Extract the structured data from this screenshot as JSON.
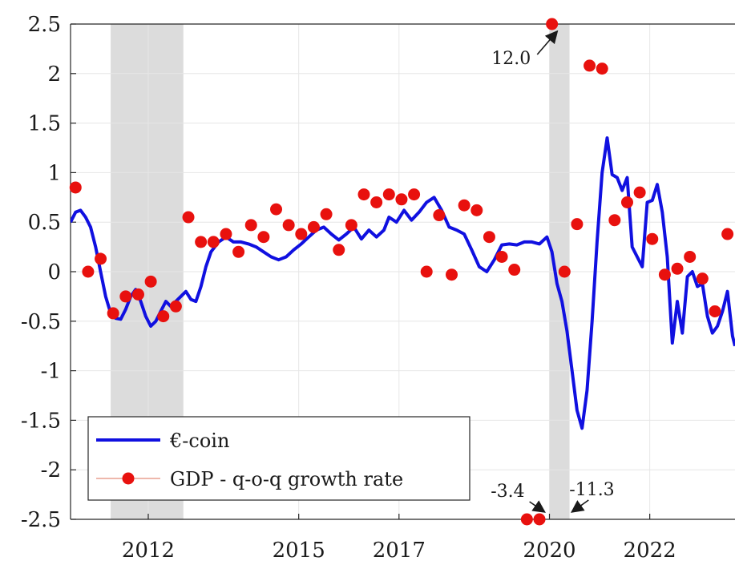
{
  "chart_data": {
    "type": "line",
    "title": "",
    "xlabel": "",
    "ylabel": "",
    "xlim": [
      2010.45,
      2023.7
    ],
    "ylim": [
      -2.5,
      2.5
    ],
    "grid": true,
    "x_ticks": [
      2012,
      2015,
      2017,
      2020,
      2022
    ],
    "y_ticks": [
      2.5,
      2,
      1.5,
      1,
      0.5,
      0,
      -0.5,
      -1,
      -1.5,
      -2,
      -2.5
    ],
    "y_tick_labels": [
      "2.5",
      "2",
      "1.5",
      "1",
      "0.5",
      "0",
      "-0.5",
      "-1",
      "-1.5",
      "-2",
      "-2.5"
    ],
    "x_tick_labels": [
      "2012",
      "2015",
      "2017",
      "2020",
      "2022"
    ],
    "recession_bands": [
      [
        2011.25,
        2012.7
      ],
      [
        2020.0,
        2020.4
      ]
    ],
    "legend": {
      "position": "bottom-left"
    },
    "colors": {
      "line": "#1010e0",
      "dots": "#e8110e",
      "band": "#dcdcdc",
      "grid": "#e6e6e6"
    },
    "series": [
      {
        "name": "€-coin",
        "kind": "line",
        "x": [
          2010.45,
          2010.55,
          2010.65,
          2010.75,
          2010.85,
          2010.95,
          2011.05,
          2011.15,
          2011.25,
          2011.35,
          2011.45,
          2011.55,
          2011.65,
          2011.75,
          2011.85,
          2011.95,
          2012.05,
          2012.15,
          2012.25,
          2012.35,
          2012.45,
          2012.55,
          2012.65,
          2012.75,
          2012.85,
          2012.95,
          2013.05,
          2013.15,
          2013.25,
          2013.4,
          2013.55,
          2013.7,
          2013.85,
          2014.0,
          2014.15,
          2014.3,
          2014.45,
          2014.6,
          2014.75,
          2014.9,
          2015.05,
          2015.2,
          2015.35,
          2015.5,
          2015.65,
          2015.8,
          2015.95,
          2016.1,
          2016.25,
          2016.4,
          2016.55,
          2016.7,
          2016.8,
          2016.95,
          2017.1,
          2017.25,
          2017.4,
          2017.55,
          2017.7,
          2017.85,
          2018.0,
          2018.15,
          2018.3,
          2018.45,
          2018.6,
          2018.75,
          2018.9,
          2019.05,
          2019.2,
          2019.35,
          2019.5,
          2019.65,
          2019.8,
          2019.95,
          2020.05,
          2020.15,
          2020.25,
          2020.35,
          2020.45,
          2020.55,
          2020.65,
          2020.75,
          2020.85,
          2020.95,
          2021.05,
          2021.15,
          2021.25,
          2021.35,
          2021.45,
          2021.55,
          2021.65,
          2021.75,
          2021.85,
          2021.95,
          2022.05,
          2022.15,
          2022.25,
          2022.35,
          2022.45,
          2022.55,
          2022.65,
          2022.75,
          2022.85,
          2022.95,
          2023.05,
          2023.15,
          2023.25,
          2023.35,
          2023.45,
          2023.55,
          2023.65,
          2023.7
        ],
        "y": [
          0.5,
          0.6,
          0.62,
          0.55,
          0.45,
          0.25,
          0.0,
          -0.25,
          -0.42,
          -0.47,
          -0.48,
          -0.38,
          -0.25,
          -0.18,
          -0.3,
          -0.45,
          -0.55,
          -0.5,
          -0.4,
          -0.3,
          -0.35,
          -0.3,
          -0.25,
          -0.2,
          -0.28,
          -0.3,
          -0.15,
          0.05,
          0.2,
          0.3,
          0.35,
          0.3,
          0.3,
          0.28,
          0.25,
          0.2,
          0.15,
          0.12,
          0.15,
          0.22,
          0.28,
          0.35,
          0.42,
          0.45,
          0.38,
          0.32,
          0.38,
          0.45,
          0.33,
          0.42,
          0.35,
          0.42,
          0.55,
          0.5,
          0.62,
          0.52,
          0.6,
          0.7,
          0.75,
          0.62,
          0.45,
          0.42,
          0.38,
          0.22,
          0.05,
          0.0,
          0.12,
          0.27,
          0.28,
          0.27,
          0.3,
          0.3,
          0.28,
          0.35,
          0.2,
          -0.12,
          -0.3,
          -0.6,
          -1.0,
          -1.4,
          -1.58,
          -1.2,
          -0.5,
          0.3,
          1.0,
          1.35,
          0.98,
          0.95,
          0.82,
          0.95,
          0.25,
          0.15,
          0.05,
          0.7,
          0.72,
          0.88,
          0.6,
          0.15,
          -0.72,
          -0.3,
          -0.62,
          -0.05,
          0.0,
          -0.15,
          -0.12,
          -0.45,
          -0.62,
          -0.55,
          -0.4,
          -0.2,
          -0.65,
          -0.75
        ]
      },
      {
        "name": "GDP - q-o-q growth rate",
        "kind": "scatter",
        "x": [
          2010.55,
          2010.8,
          2011.05,
          2011.3,
          2011.55,
          2011.8,
          2012.05,
          2012.3,
          2012.55,
          2012.8,
          2013.05,
          2013.3,
          2013.55,
          2013.8,
          2014.05,
          2014.3,
          2014.55,
          2014.8,
          2015.05,
          2015.3,
          2015.55,
          2015.8,
          2016.05,
          2016.3,
          2016.55,
          2016.8,
          2017.05,
          2017.3,
          2017.55,
          2017.8,
          2018.05,
          2018.3,
          2018.55,
          2018.8,
          2019.05,
          2019.3,
          2019.55,
          2019.8,
          2020.05,
          2020.3,
          2020.55,
          2020.8,
          2021.05,
          2021.3,
          2021.55,
          2021.8,
          2022.05,
          2022.3,
          2022.55,
          2022.8,
          2023.05,
          2023.3,
          2023.55
        ],
        "y": [
          0.85,
          0.0,
          0.13,
          -0.42,
          -0.25,
          -0.23,
          -0.1,
          -0.45,
          -0.35,
          0.55,
          0.3,
          0.3,
          0.38,
          0.2,
          0.47,
          0.35,
          0.63,
          0.47,
          0.38,
          0.45,
          0.58,
          0.22,
          0.47,
          0.78,
          0.7,
          0.78,
          0.73,
          0.78,
          0.0,
          0.57,
          -0.03,
          0.67,
          0.62,
          0.35,
          0.15,
          0.02,
          -2.5,
          -2.5,
          2.5,
          0.0,
          0.48,
          2.08,
          2.05,
          0.52,
          0.7,
          0.8,
          0.33,
          -0.03,
          0.03,
          0.15,
          -0.07,
          -0.4,
          0.38
        ]
      }
    ],
    "annotations": [
      {
        "text": "12.0",
        "x": 2020.3,
        "y": 2.5,
        "direction": "up-right"
      },
      {
        "text": "-3.4",
        "x": 2020.05,
        "y": -2.5,
        "direction": "down-right"
      },
      {
        "text": "-11.3",
        "x": 2020.3,
        "y": -2.5,
        "direction": "down-left"
      }
    ]
  }
}
